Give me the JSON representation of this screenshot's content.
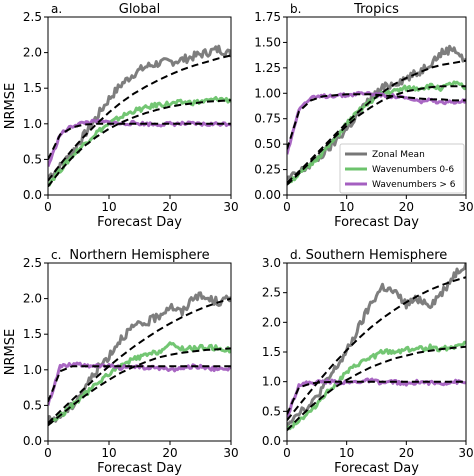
{
  "colors": {
    "zonal_mean": "#777777",
    "wn_0_6": "#6cc36c",
    "wn_gt_6": "#a45fc0",
    "fit": "#000000"
  },
  "legend": {
    "entries": [
      {
        "name": "Zonal Mean",
        "color": "#777777"
      },
      {
        "name": "Wavenumbers 0-6",
        "color": "#6cc36c"
      },
      {
        "name": "Wavenumbers > 6",
        "color": "#a45fc0"
      }
    ]
  },
  "chart_data": [
    {
      "type": "line",
      "panel_label": "a.",
      "title": "Global",
      "xlabel": "Forecast Day",
      "ylabel": "NRMSE",
      "xlim": [
        0,
        30
      ],
      "ylim": [
        0,
        2.5
      ],
      "xticks": [
        "0",
        "10",
        "20",
        "30"
      ],
      "yticks": [
        "0.0",
        "0.5",
        "1.0",
        "1.5",
        "2.0",
        "2.5"
      ],
      "grid": false,
      "x": [
        0,
        2,
        4,
        6,
        8,
        10,
        12,
        14,
        16,
        18,
        20,
        22,
        24,
        26,
        28,
        30
      ],
      "series": [
        {
          "name": "Zonal Mean",
          "values": [
            0.25,
            0.4,
            0.6,
            0.85,
            1.1,
            1.35,
            1.55,
            1.7,
            1.8,
            1.85,
            1.87,
            1.9,
            1.95,
            2.0,
            2.05,
            1.98
          ]
        },
        {
          "name": "Wavenumbers 0-6",
          "values": [
            0.15,
            0.35,
            0.55,
            0.72,
            0.88,
            1.0,
            1.1,
            1.18,
            1.22,
            1.27,
            1.28,
            1.3,
            1.3,
            1.32,
            1.35,
            1.33
          ]
        },
        {
          "name": "Wavenumbers > 6",
          "values": [
            0.4,
            0.85,
            0.97,
            1.02,
            1.03,
            1.02,
            1.0,
            1.01,
            1.0,
            0.99,
            1.0,
            1.0,
            1.0,
            0.99,
            1.0,
            1.0
          ]
        }
      ],
      "fits": [
        {
          "series": "Zonal Mean",
          "values": [
            0.2,
            0.43,
            0.64,
            0.83,
            1.0,
            1.16,
            1.3,
            1.42,
            1.52,
            1.61,
            1.69,
            1.76,
            1.82,
            1.87,
            1.92,
            1.96
          ]
        },
        {
          "series": "Wavenumbers 0-6",
          "values": [
            0.12,
            0.34,
            0.53,
            0.69,
            0.82,
            0.93,
            1.02,
            1.09,
            1.15,
            1.2,
            1.24,
            1.27,
            1.29,
            1.31,
            1.32,
            1.33
          ]
        },
        {
          "series": "Wavenumbers > 6",
          "values": [
            0.5,
            0.85,
            0.95,
            0.99,
            1.0,
            1.0,
            1.0,
            1.0,
            1.0,
            1.0,
            1.0,
            1.0,
            1.0,
            1.0,
            1.0,
            1.0
          ]
        }
      ]
    },
    {
      "type": "line",
      "panel_label": "b.",
      "title": "Tropics",
      "xlabel": "Forecast Day",
      "ylabel": "",
      "xlim": [
        0,
        30
      ],
      "ylim": [
        0,
        1.75
      ],
      "xticks": [
        "0",
        "10",
        "20",
        "30"
      ],
      "yticks": [
        "0.00",
        "0.25",
        "0.50",
        "0.75",
        "1.00",
        "1.25",
        "1.50",
        "1.75"
      ],
      "grid": false,
      "legend_position": "center-right",
      "x": [
        0,
        2,
        4,
        6,
        8,
        10,
        12,
        14,
        16,
        18,
        20,
        22,
        24,
        26,
        28,
        30
      ],
      "series": [
        {
          "name": "Zonal Mean",
          "values": [
            0.15,
            0.22,
            0.3,
            0.4,
            0.52,
            0.65,
            0.8,
            0.95,
            1.05,
            1.1,
            1.15,
            1.2,
            1.3,
            1.4,
            1.45,
            1.3
          ]
        },
        {
          "name": "Wavenumbers 0-6",
          "values": [
            0.12,
            0.2,
            0.3,
            0.42,
            0.55,
            0.7,
            0.82,
            0.92,
            1.0,
            1.02,
            1.05,
            1.05,
            1.07,
            1.05,
            1.1,
            1.05
          ]
        },
        {
          "name": "Wavenumbers > 6",
          "values": [
            0.4,
            0.85,
            0.95,
            0.97,
            0.98,
            0.98,
            1.0,
            1.0,
            0.98,
            0.97,
            0.95,
            0.92,
            0.93,
            0.9,
            0.92,
            0.93
          ]
        }
      ],
      "fits": [
        {
          "series": "Zonal Mean",
          "values": [
            0.12,
            0.23,
            0.35,
            0.47,
            0.59,
            0.71,
            0.82,
            0.92,
            1.01,
            1.09,
            1.15,
            1.2,
            1.25,
            1.28,
            1.3,
            1.32
          ]
        },
        {
          "series": "Wavenumbers 0-6",
          "values": [
            0.1,
            0.21,
            0.33,
            0.45,
            0.57,
            0.68,
            0.78,
            0.86,
            0.93,
            0.98,
            1.02,
            1.04,
            1.06,
            1.07,
            1.07,
            1.07
          ]
        },
        {
          "series": "Wavenumbers > 6",
          "values": [
            0.45,
            0.82,
            0.93,
            0.97,
            0.98,
            0.99,
            0.99,
            0.99,
            0.98,
            0.97,
            0.96,
            0.95,
            0.94,
            0.94,
            0.93,
            0.93
          ]
        }
      ]
    },
    {
      "type": "line",
      "panel_label": "c.",
      "title": "Northern Hemisphere",
      "xlabel": "Forecast Day",
      "ylabel": "NRMSE",
      "xlim": [
        0,
        30
      ],
      "ylim": [
        0,
        2.5
      ],
      "xticks": [
        "0",
        "10",
        "20",
        "30"
      ],
      "yticks": [
        "0.0",
        "0.5",
        "1.0",
        "1.5",
        "2.0",
        "2.5"
      ],
      "grid": false,
      "x": [
        0,
        2,
        4,
        6,
        8,
        10,
        12,
        14,
        16,
        18,
        20,
        22,
        24,
        26,
        28,
        30
      ],
      "series": [
        {
          "name": "Zonal Mean",
          "values": [
            0.28,
            0.35,
            0.5,
            0.75,
            1.0,
            1.2,
            1.45,
            1.6,
            1.65,
            1.75,
            1.9,
            1.8,
            2.05,
            2.0,
            1.95,
            2.0
          ]
        },
        {
          "name": "Wavenumbers 0-6",
          "values": [
            0.25,
            0.35,
            0.5,
            0.65,
            0.8,
            0.95,
            1.05,
            1.15,
            1.2,
            1.25,
            1.35,
            1.3,
            1.3,
            1.32,
            1.3,
            1.28
          ]
        },
        {
          "name": "Wavenumbers > 6",
          "values": [
            0.5,
            1.05,
            1.08,
            1.07,
            1.05,
            1.05,
            1.03,
            1.05,
            1.02,
            1.03,
            1.0,
            1.02,
            1.05,
            1.03,
            1.0,
            1.02
          ]
        }
      ],
      "fits": [
        {
          "series": "Zonal Mean",
          "values": [
            0.25,
            0.42,
            0.58,
            0.74,
            0.9,
            1.05,
            1.19,
            1.32,
            1.44,
            1.55,
            1.65,
            1.74,
            1.82,
            1.89,
            1.95,
            2.0
          ]
        },
        {
          "series": "Wavenumbers 0-6",
          "values": [
            0.22,
            0.36,
            0.5,
            0.63,
            0.75,
            0.86,
            0.96,
            1.04,
            1.11,
            1.17,
            1.21,
            1.24,
            1.26,
            1.28,
            1.29,
            1.3
          ]
        },
        {
          "series": "Wavenumbers > 6",
          "values": [
            0.55,
            0.98,
            1.05,
            1.05,
            1.05,
            1.05,
            1.05,
            1.05,
            1.05,
            1.05,
            1.05,
            1.05,
            1.05,
            1.05,
            1.05,
            1.05
          ]
        }
      ]
    },
    {
      "type": "line",
      "panel_label": "d.",
      "title": "Southern Hemisphere",
      "xlabel": "Forecast Day",
      "ylabel": "",
      "xlim": [
        0,
        30
      ],
      "ylim": [
        0,
        3.0
      ],
      "xticks": [
        "0",
        "10",
        "20",
        "30"
      ],
      "yticks": [
        "0.0",
        "0.5",
        "1.0",
        "1.5",
        "2.0",
        "2.5",
        "3.0"
      ],
      "grid": false,
      "x": [
        0,
        2,
        4,
        6,
        8,
        10,
        12,
        14,
        16,
        18,
        20,
        22,
        24,
        26,
        28,
        30
      ],
      "series": [
        {
          "name": "Zonal Mean",
          "values": [
            0.3,
            0.5,
            0.6,
            0.9,
            1.2,
            1.5,
            1.9,
            2.3,
            2.6,
            2.5,
            2.3,
            2.4,
            2.3,
            2.5,
            2.8,
            3.0
          ]
        },
        {
          "name": "Wavenumbers 0-6",
          "values": [
            0.2,
            0.35,
            0.5,
            0.75,
            0.95,
            1.15,
            1.3,
            1.4,
            1.5,
            1.5,
            1.55,
            1.55,
            1.58,
            1.55,
            1.6,
            1.65
          ]
        },
        {
          "name": "Wavenumbers > 6",
          "values": [
            0.4,
            0.95,
            0.98,
            1.0,
            1.0,
            0.98,
            1.0,
            1.02,
            0.98,
            1.0,
            0.95,
            1.0,
            0.98,
            0.97,
            1.0,
            0.98
          ]
        }
      ],
      "fits": [
        {
          "series": "Zonal Mean",
          "values": [
            0.35,
            0.6,
            0.85,
            1.09,
            1.32,
            1.53,
            1.73,
            1.91,
            2.07,
            2.21,
            2.34,
            2.45,
            2.55,
            2.63,
            2.7,
            2.76
          ]
        },
        {
          "series": "Wavenumbers 0-6",
          "values": [
            0.18,
            0.39,
            0.58,
            0.75,
            0.9,
            1.03,
            1.14,
            1.24,
            1.32,
            1.39,
            1.44,
            1.49,
            1.52,
            1.55,
            1.57,
            1.59
          ]
        },
        {
          "series": "Wavenumbers > 6",
          "values": [
            0.45,
            0.9,
            0.97,
            0.99,
            1.0,
            1.0,
            1.0,
            1.0,
            1.0,
            1.0,
            1.0,
            1.0,
            1.0,
            1.0,
            1.0,
            1.0
          ]
        }
      ]
    }
  ]
}
